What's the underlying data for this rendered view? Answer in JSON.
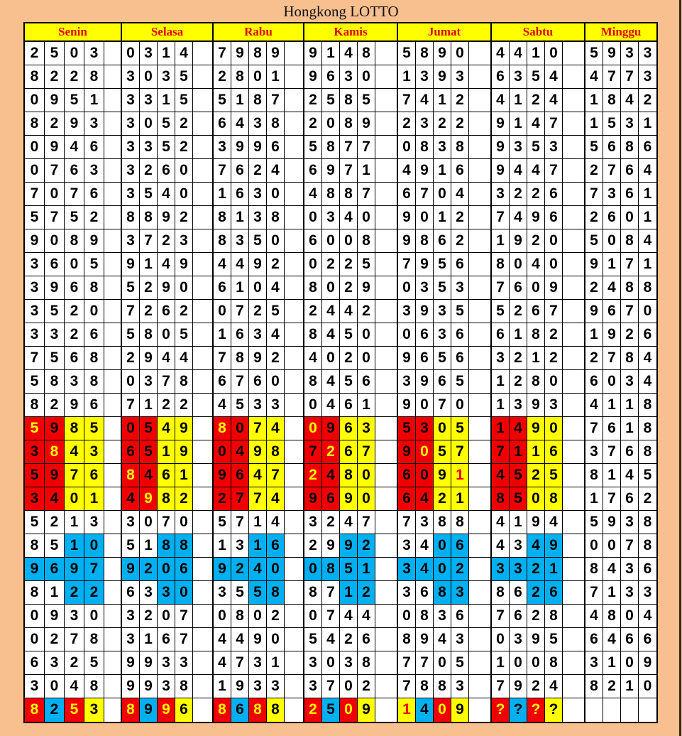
{
  "title": "Hongkong LOTTO",
  "colors": {
    "background": "#f8bf8f",
    "header": "#ffff00",
    "header_text": "#e00000",
    "R": "#f00000",
    "Y": "#ffff00",
    "B": "#00b0f0",
    "W": "#ffffff",
    "k": "#000000",
    "y": "#ffff00",
    "r": "#f00000"
  },
  "days": [
    "Senin",
    "Selasa",
    "Rabu",
    "Kamis",
    "Jumat",
    "Sabtu",
    "Minggu"
  ],
  "rows": [
    {
      "cells": [
        "2503",
        "0314",
        "7989",
        "9148",
        "5890",
        "4410",
        "5933"
      ]
    },
    {
      "cells": [
        "8228",
        "3035",
        "2801",
        "9630",
        "1393",
        "6354",
        "4773"
      ]
    },
    {
      "cells": [
        "0951",
        "3315",
        "5187",
        "2585",
        "7412",
        "4124",
        "1842"
      ]
    },
    {
      "cells": [
        "8293",
        "3052",
        "6438",
        "2089",
        "2322",
        "9147",
        "1531"
      ]
    },
    {
      "cells": [
        "0946",
        "3352",
        "3996",
        "5877",
        "0838",
        "9353",
        "5686"
      ]
    },
    {
      "cells": [
        "0763",
        "3260",
        "7624",
        "6971",
        "4916",
        "9447",
        "2764"
      ]
    },
    {
      "cells": [
        "7076",
        "3540",
        "1630",
        "4887",
        "6704",
        "3226",
        "7361"
      ]
    },
    {
      "cells": [
        "5752",
        "8892",
        "8138",
        "0340",
        "9012",
        "7496",
        "2601"
      ]
    },
    {
      "cells": [
        "9089",
        "3723",
        "8350",
        "6008",
        "9862",
        "1920",
        "5084"
      ]
    },
    {
      "cells": [
        "3605",
        "9149",
        "4492",
        "0225",
        "7956",
        "8040",
        "9171"
      ]
    },
    {
      "cells": [
        "3968",
        "5290",
        "6104",
        "8029",
        "0353",
        "7609",
        "2488"
      ]
    },
    {
      "cells": [
        "3520",
        "7262",
        "0725",
        "2442",
        "3935",
        "5267",
        "9670"
      ]
    },
    {
      "cells": [
        "3326",
        "5805",
        "1634",
        "8450",
        "0636",
        "6182",
        "1926"
      ]
    },
    {
      "cells": [
        "7568",
        "2944",
        "7892",
        "4020",
        "9656",
        "3212",
        "2784"
      ]
    },
    {
      "cells": [
        "5838",
        "0378",
        "6760",
        "8456",
        "3965",
        "1280",
        "6034"
      ]
    },
    {
      "cells": [
        "8296",
        "7122",
        "4533",
        "0461",
        "9070",
        "1393",
        "4118"
      ]
    },
    {
      "cells": [
        "5985",
        "0549",
        "8074",
        "0963",
        "5305",
        "1490",
        "7618"
      ],
      "fill": [
        "RRYY",
        "RRYY",
        "RRYY",
        "RRYY",
        "RRYY",
        "RRYY",
        "WWWW"
      ],
      "ink": [
        "ykkk",
        "kkkk",
        "ykkk",
        "ykkk",
        "kkkk",
        "kkkk",
        "kkkk"
      ]
    },
    {
      "cells": [
        "3843",
        "6519",
        "0498",
        "7267",
        "9057",
        "7116",
        "3768"
      ],
      "fill": [
        "RRYY",
        "RRYY",
        "RRYY",
        "RRYY",
        "RRYY",
        "RRYY",
        "WWWW"
      ],
      "ink": [
        "kykk",
        "kkkk",
        "kkkk",
        "kykk",
        "kykk",
        "kkkk",
        "kkkk"
      ]
    },
    {
      "cells": [
        "5976",
        "8461",
        "9647",
        "2480",
        "6091",
        "4525",
        "8145"
      ],
      "fill": [
        "RRYY",
        "RRYY",
        "RRYY",
        "RRYY",
        "RRYY",
        "RRYY",
        "WWWW"
      ],
      "ink": [
        "kkkk",
        "ykkk",
        "kkkk",
        "ykkk",
        "kkkr",
        "kkkk",
        "kkkk"
      ]
    },
    {
      "cells": [
        "3401",
        "4982",
        "2774",
        "9690",
        "6421",
        "8508",
        "1762"
      ],
      "fill": [
        "RRYY",
        "RRYY",
        "RRYY",
        "RRYY",
        "RRYY",
        "RRYY",
        "WWWW"
      ],
      "ink": [
        "kkkk",
        "kykk",
        "kkkk",
        "kkkk",
        "kkkk",
        "kkkk",
        "kkkk"
      ]
    },
    {
      "cells": [
        "5213",
        "3070",
        "5714",
        "3247",
        "7388",
        "4194",
        "5938"
      ]
    },
    {
      "cells": [
        "8510",
        "5188",
        "1316",
        "2992",
        "3406",
        "4349",
        "0078"
      ],
      "fill": [
        "WWBB",
        "WWBB",
        "WWBB",
        "WWBB",
        "WWBB",
        "WWBB",
        "WWWW"
      ]
    },
    {
      "cells": [
        "9697",
        "9206",
        "9240",
        "0851",
        "3402",
        "3321",
        "8436"
      ],
      "fill": [
        "BBBB",
        "BBBB",
        "BBBB",
        "BBBB",
        "BBBB",
        "BBBB",
        "WWWW"
      ]
    },
    {
      "cells": [
        "8122",
        "6330",
        "3558",
        "8712",
        "3683",
        "8626",
        "7133"
      ],
      "fill": [
        "WWBB",
        "WWBB",
        "WWBB",
        "WWBB",
        "WWBB",
        "WWBB",
        "WWWW"
      ]
    },
    {
      "cells": [
        "0930",
        "3207",
        "0802",
        "0744",
        "0836",
        "7628",
        "4804"
      ]
    },
    {
      "cells": [
        "0278",
        "3167",
        "4490",
        "5426",
        "8943",
        "0395",
        "6466"
      ]
    },
    {
      "cells": [
        "6325",
        "9933",
        "4731",
        "3038",
        "7705",
        "1008",
        "3109"
      ]
    },
    {
      "cells": [
        "3048",
        "9938",
        "1933",
        "3702",
        "7883",
        "7924",
        "8210"
      ]
    },
    {
      "cells": [
        "8253",
        "8996",
        "8688",
        "2509",
        "1409",
        "????",
        ""
      ],
      "fill": [
        "RBRY",
        "RBRY",
        "RBRY",
        "RBRY",
        "YBRY",
        "RBRY",
        "WWWW"
      ],
      "ink": [
        "ykyk",
        "ykyk",
        "ykyk",
        "ykyk",
        "rkyk",
        "ykyk",
        "kkkk"
      ]
    }
  ]
}
